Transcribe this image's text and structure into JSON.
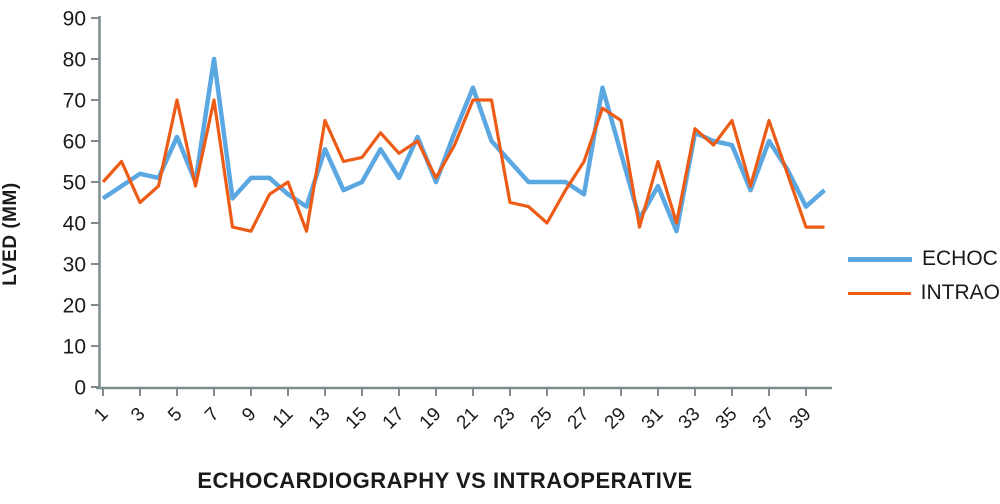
{
  "chart_data": {
    "type": "line",
    "title": "ECHOCARDIOGRAPHY VS INTRAOPERATIVE",
    "ylabel": "LVED (MM)",
    "xlabel": "",
    "ylim": [
      0,
      90
    ],
    "ytick_interval": 10,
    "ytick_labels": [
      "0",
      "10",
      "20",
      "30",
      "40",
      "50",
      "60",
      "70",
      "80",
      "90"
    ],
    "x": [
      1,
      2,
      3,
      4,
      5,
      6,
      7,
      8,
      9,
      10,
      11,
      12,
      13,
      14,
      15,
      16,
      17,
      18,
      19,
      20,
      21,
      22,
      23,
      24,
      25,
      26,
      27,
      28,
      29,
      30,
      31,
      32,
      33,
      34,
      35,
      36,
      37,
      38,
      39,
      40
    ],
    "x_tick_labels": [
      "1",
      "3",
      "5",
      "7",
      "9",
      "11",
      "13",
      "15",
      "17",
      "19",
      "21",
      "23",
      "25",
      "27",
      "29",
      "31",
      "33",
      "35",
      "37",
      "39"
    ],
    "x_tick_positions": [
      1,
      3,
      5,
      7,
      9,
      11,
      13,
      15,
      17,
      19,
      21,
      23,
      25,
      27,
      29,
      31,
      33,
      35,
      37,
      39
    ],
    "grid": false,
    "legend_position": "right",
    "series": [
      {
        "name": "ECHOC",
        "color": "#5BA7E2",
        "stroke_width": 4.5,
        "values": [
          46,
          49,
          52,
          51,
          61,
          50,
          80,
          46,
          51,
          51,
          47,
          44,
          58,
          48,
          50,
          58,
          51,
          61,
          50,
          62,
          73,
          60,
          55,
          50,
          50,
          50,
          47,
          73,
          57,
          41,
          49,
          38,
          62,
          60,
          59,
          48,
          60,
          53,
          44,
          48
        ]
      },
      {
        "name": "INTRAO",
        "color": "#ED5C16",
        "stroke_width": 3.2,
        "values": [
          50,
          55,
          45,
          49,
          70,
          49,
          70,
          39,
          38,
          47,
          50,
          38,
          65,
          55,
          56,
          62,
          57,
          60,
          51,
          59,
          70,
          70,
          45,
          44,
          40,
          48,
          55,
          68,
          65,
          39,
          55,
          40,
          63,
          59,
          65,
          49,
          65,
          52,
          39,
          39
        ]
      }
    ],
    "style": {
      "axis_color": "#7F8C8D",
      "text_color": "#1A1A1A",
      "background": "#FFFFFF"
    }
  }
}
